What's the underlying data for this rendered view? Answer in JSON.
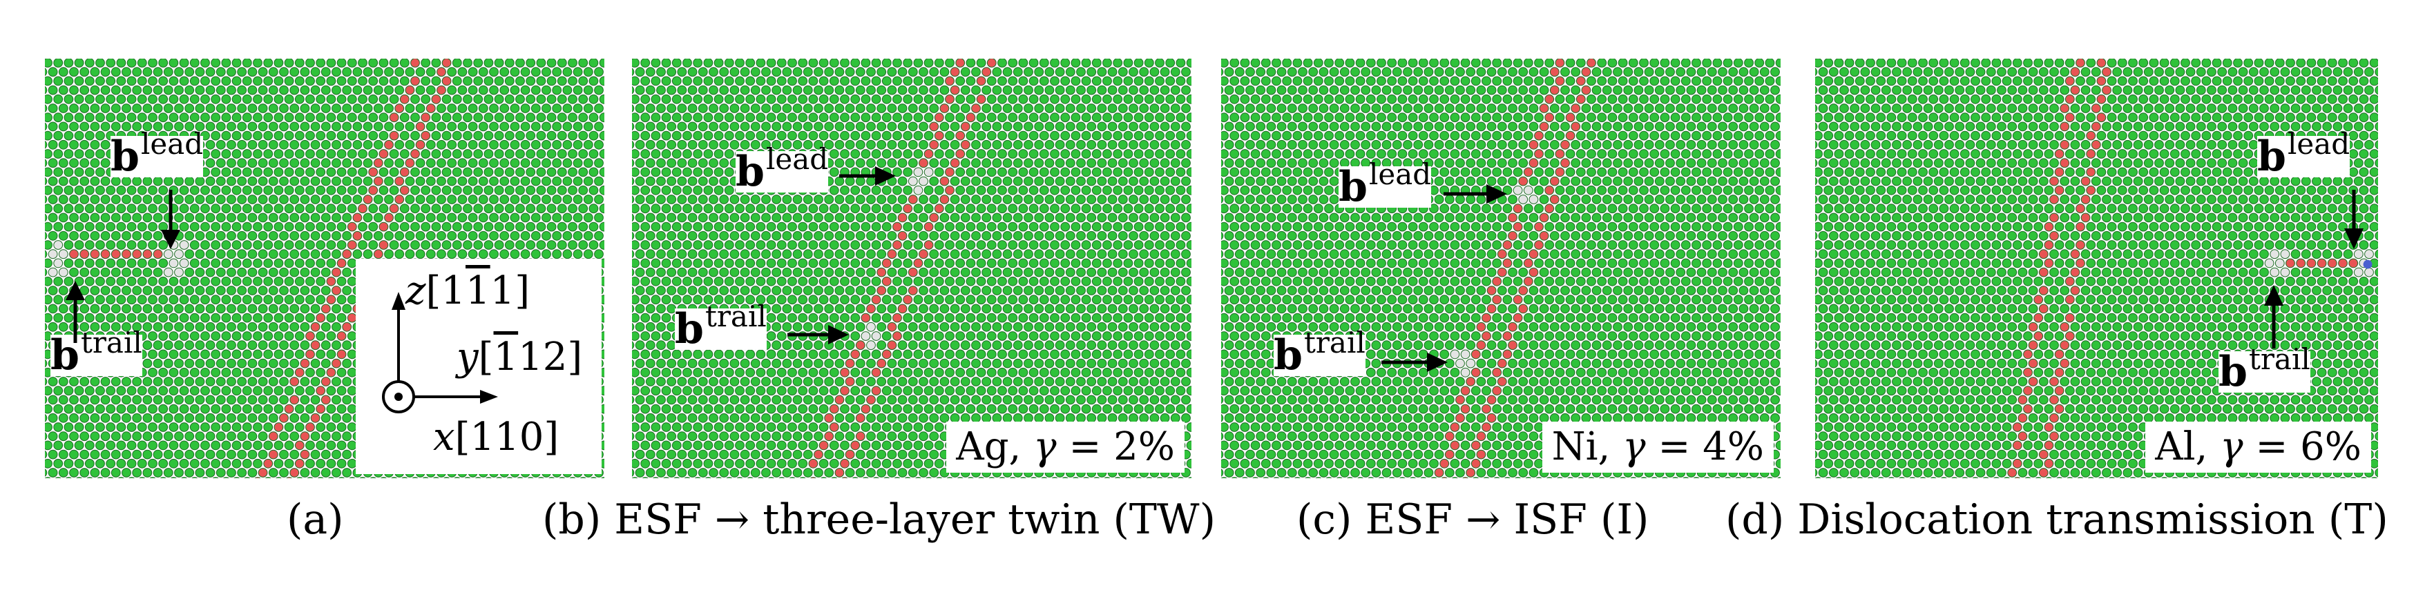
{
  "panels": [
    {
      "id": "a",
      "caption": "(a)",
      "lead_label": "b",
      "lead_sup": "lead",
      "trail_label": "b",
      "trail_sup": "trail",
      "axes": {
        "z": "z",
        "z_dir_pre": "[1",
        "z_dir_bar": "1",
        "z_dir_post": "1]",
        "y": "y",
        "y_dir_pre": "[",
        "y_dir_bar": "1",
        "y_dir_post": "12]",
        "x": "x",
        "x_dir": "[110]"
      }
    },
    {
      "id": "b",
      "caption": "(b) ESF → three-layer twin (TW)",
      "lead_label": "b",
      "lead_sup": "lead",
      "trail_label": "b",
      "trail_sup": "trail",
      "material": "Ag,",
      "gamma_symbol": "γ",
      "gamma_value": "= 2%"
    },
    {
      "id": "c",
      "caption": "(c) ESF → ISF (I)",
      "lead_label": "b",
      "lead_sup": "lead",
      "trail_label": "b",
      "trail_sup": "trail",
      "material": "Ni,",
      "gamma_symbol": "γ",
      "gamma_value": "= 4%"
    },
    {
      "id": "d",
      "caption": "(d) Dislocation transmission (T)",
      "lead_label": "b",
      "lead_sup": "lead",
      "trail_label": "b",
      "trail_sup": "trail",
      "material": "Al,",
      "gamma_symbol": "γ",
      "gamma_value": "= 6%"
    }
  ],
  "colors": {
    "fcc_atom": "#2fc23a",
    "hcp_atom": "#e85454",
    "other_atom": "#e4e4e4",
    "bcc_atom": "#4a5fd0",
    "background": "#ffffff"
  }
}
